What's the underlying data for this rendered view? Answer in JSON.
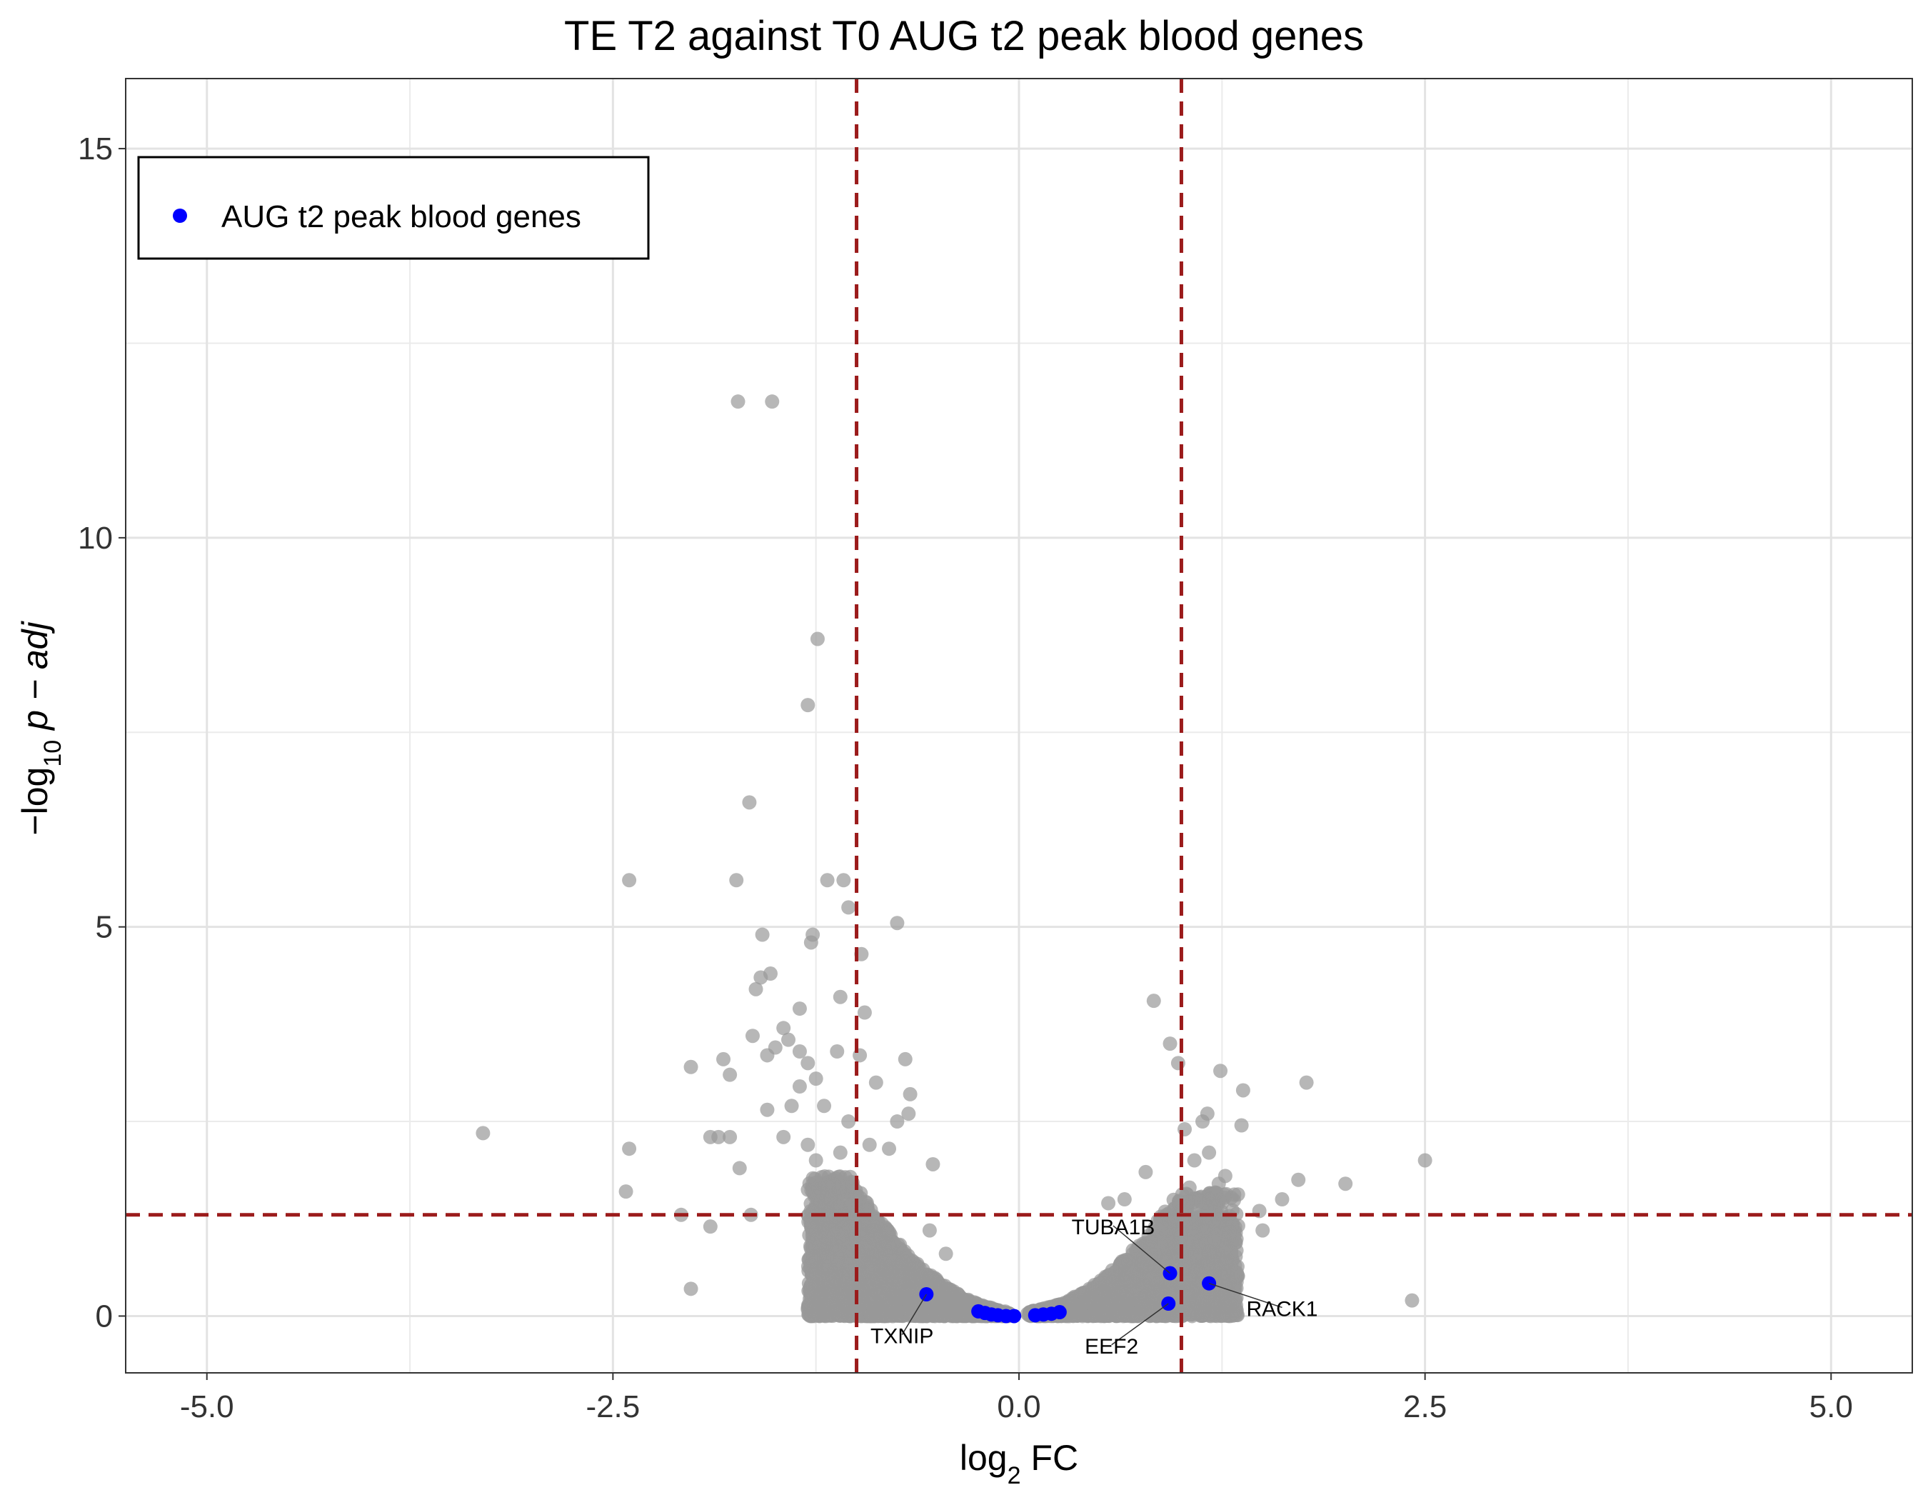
{
  "chart_data": {
    "type": "scatter",
    "title": "TE T2 against T0 AUG t2 peak blood genes",
    "xlabel": {
      "prefix": "log",
      "sub": "2",
      "suffix": " FC"
    },
    "ylabel": {
      "prefix": "−log",
      "sub": "10",
      "suffix": " p − adj"
    },
    "xlim": [
      -5.5,
      5.5
    ],
    "ylim": [
      -0.73,
      15.9
    ],
    "xticks": [
      -5.0,
      -2.5,
      0.0,
      2.5,
      5.0
    ],
    "xtick_labels": [
      "-5.0",
      "-2.5",
      "0.0",
      "2.5",
      "5.0"
    ],
    "yticks": [
      0,
      5,
      10,
      15
    ],
    "ytick_labels": [
      "0",
      "5",
      "10",
      "15"
    ],
    "grid": true,
    "threshold_lines": {
      "x": [
        -1,
        1
      ],
      "y": 1.3,
      "color": "#9b1b1b"
    },
    "legend": {
      "position": "top-left",
      "entries": [
        {
          "name": "AUG t2 peak blood genes",
          "color": "#0000ff"
        }
      ]
    },
    "background_color": "#999999",
    "highlight_color": "#0000ff",
    "background_points": [
      [
        -1.73,
        11.75
      ],
      [
        -1.52,
        11.75
      ],
      [
        -1.24,
        8.7
      ],
      [
        -1.3,
        7.85
      ],
      [
        -1.66,
        6.6
      ],
      [
        -2.4,
        5.6
      ],
      [
        -1.74,
        5.6
      ],
      [
        -1.18,
        5.6
      ],
      [
        -1.08,
        5.6
      ],
      [
        -0.75,
        5.05
      ],
      [
        -1.05,
        5.25
      ],
      [
        -1.27,
        4.9
      ],
      [
        -1.28,
        4.8
      ],
      [
        -1.58,
        4.9
      ],
      [
        -0.97,
        4.65
      ],
      [
        -1.59,
        4.35
      ],
      [
        -1.53,
        4.4
      ],
      [
        -1.62,
        4.2
      ],
      [
        -1.1,
        4.1
      ],
      [
        -0.95,
        3.9
      ],
      [
        -1.35,
        3.95
      ],
      [
        -1.45,
        3.7
      ],
      [
        -1.64,
        3.6
      ],
      [
        -1.42,
        3.55
      ],
      [
        -1.5,
        3.45
      ],
      [
        -1.55,
        3.35
      ],
      [
        -1.35,
        3.4
      ],
      [
        -1.3,
        3.25
      ],
      [
        -1.12,
        3.4
      ],
      [
        -0.98,
        3.35
      ],
      [
        -0.7,
        3.3
      ],
      [
        -2.02,
        3.2
      ],
      [
        -1.82,
        3.3
      ],
      [
        -1.78,
        3.1
      ],
      [
        -1.25,
        3.05
      ],
      [
        -1.35,
        2.95
      ],
      [
        -0.88,
        3.0
      ],
      [
        -0.67,
        2.85
      ],
      [
        -1.55,
        2.65
      ],
      [
        -1.4,
        2.7
      ],
      [
        -1.2,
        2.7
      ],
      [
        -0.68,
        2.6
      ],
      [
        -0.75,
        2.5
      ],
      [
        -1.05,
        2.5
      ],
      [
        -1.9,
        2.3
      ],
      [
        -1.85,
        2.3
      ],
      [
        -1.78,
        2.3
      ],
      [
        -3.3,
        2.35
      ],
      [
        -2.4,
        2.15
      ],
      [
        -1.45,
        2.3
      ],
      [
        -1.3,
        2.2
      ],
      [
        -1.25,
        2.0
      ],
      [
        -1.1,
        2.1
      ],
      [
        -0.92,
        2.2
      ],
      [
        -0.8,
        2.15
      ],
      [
        -1.72,
        1.9
      ],
      [
        -0.53,
        1.95
      ],
      [
        -2.42,
        1.6
      ],
      [
        -2.08,
        1.3
      ],
      [
        -1.65,
        1.3
      ],
      [
        -1.9,
        1.15
      ],
      [
        -2.02,
        0.35
      ],
      [
        0.83,
        4.05
      ],
      [
        0.93,
        3.5
      ],
      [
        0.98,
        3.25
      ],
      [
        1.24,
        3.15
      ],
      [
        1.38,
        2.9
      ],
      [
        1.77,
        3.0
      ],
      [
        1.16,
        2.6
      ],
      [
        1.13,
        2.5
      ],
      [
        1.37,
        2.45
      ],
      [
        1.02,
        2.4
      ],
      [
        1.17,
        2.1
      ],
      [
        1.08,
        2.0
      ],
      [
        2.5,
        2.0
      ],
      [
        1.27,
        1.8
      ],
      [
        1.72,
        1.75
      ],
      [
        2.01,
        1.7
      ],
      [
        1.62,
        1.5
      ],
      [
        1.05,
        1.65
      ],
      [
        1.23,
        1.7
      ],
      [
        0.78,
        1.85
      ],
      [
        1.48,
        1.35
      ],
      [
        1.31,
        1.15
      ],
      [
        1.5,
        1.1
      ],
      [
        2.42,
        0.2
      ],
      [
        0.55,
        1.45
      ],
      [
        0.65,
        1.5
      ],
      [
        -0.55,
        1.1
      ],
      [
        -0.45,
        0.8
      ]
    ],
    "cloud_left": {
      "x_range": [
        -1.3,
        -0.05
      ],
      "y_max": 1.8,
      "count": 2200
    },
    "cloud_right": {
      "x_range": [
        0.05,
        1.35
      ],
      "y_max": 1.6,
      "count": 1700
    },
    "highlight_points": [
      [
        -0.57,
        0.28
      ],
      [
        -0.25,
        0.06
      ],
      [
        -0.21,
        0.04
      ],
      [
        -0.17,
        0.02
      ],
      [
        -0.13,
        0.01
      ],
      [
        -0.08,
        0.0
      ],
      [
        -0.03,
        0.0
      ],
      [
        0.1,
        0.01
      ],
      [
        0.15,
        0.02
      ],
      [
        0.2,
        0.03
      ],
      [
        0.25,
        0.05
      ],
      [
        0.93,
        0.55
      ],
      [
        0.92,
        0.16
      ],
      [
        1.17,
        0.42
      ]
    ],
    "gene_labels": [
      {
        "name": "TXNIP",
        "x": -0.57,
        "y": 0.28,
        "lx": -0.72,
        "ly": -0.35,
        "anchor": "middle"
      },
      {
        "name": "TUBA1B",
        "x": 0.93,
        "y": 0.55,
        "lx": 0.58,
        "ly": 1.05,
        "anchor": "middle"
      },
      {
        "name": "EEF2",
        "x": 0.92,
        "y": 0.16,
        "lx": 0.57,
        "ly": -0.48,
        "anchor": "middle"
      },
      {
        "name": "RACK1",
        "x": 1.17,
        "y": 0.42,
        "lx": 1.62,
        "ly": 0.0,
        "anchor": "middle"
      }
    ]
  }
}
